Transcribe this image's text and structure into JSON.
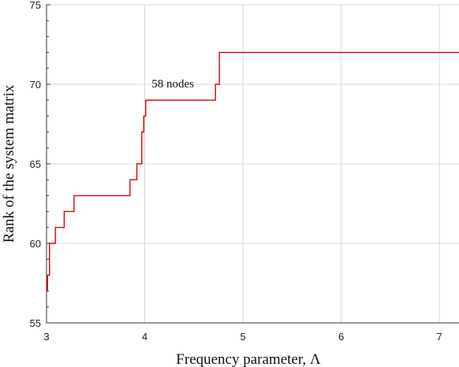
{
  "chart_data": {
    "type": "line",
    "xlabel": "Frequency parameter, Λ",
    "ylabel": "Rank of  the system matrix",
    "xlim": [
      3,
      7.2
    ],
    "ylim": [
      55,
      75
    ],
    "x_ticks": [
      3,
      4,
      5,
      6,
      7
    ],
    "y_ticks": [
      55,
      60,
      65,
      70,
      75
    ],
    "grid": true,
    "line_color": "#dd0000",
    "annotation": {
      "text": "58 nodes",
      "x": 4.07,
      "y": 69.8
    },
    "series": [
      {
        "step": true,
        "points": [
          [
            3.0,
            57
          ],
          [
            3.01,
            58
          ],
          [
            3.03,
            60
          ],
          [
            3.09,
            61
          ],
          [
            3.18,
            62
          ],
          [
            3.28,
            63
          ],
          [
            3.85,
            64
          ],
          [
            3.92,
            65
          ],
          [
            3.97,
            67
          ],
          [
            3.99,
            68
          ],
          [
            4.01,
            69
          ],
          [
            4.72,
            70
          ],
          [
            4.76,
            72
          ],
          [
            7.2,
            72
          ]
        ]
      }
    ]
  }
}
